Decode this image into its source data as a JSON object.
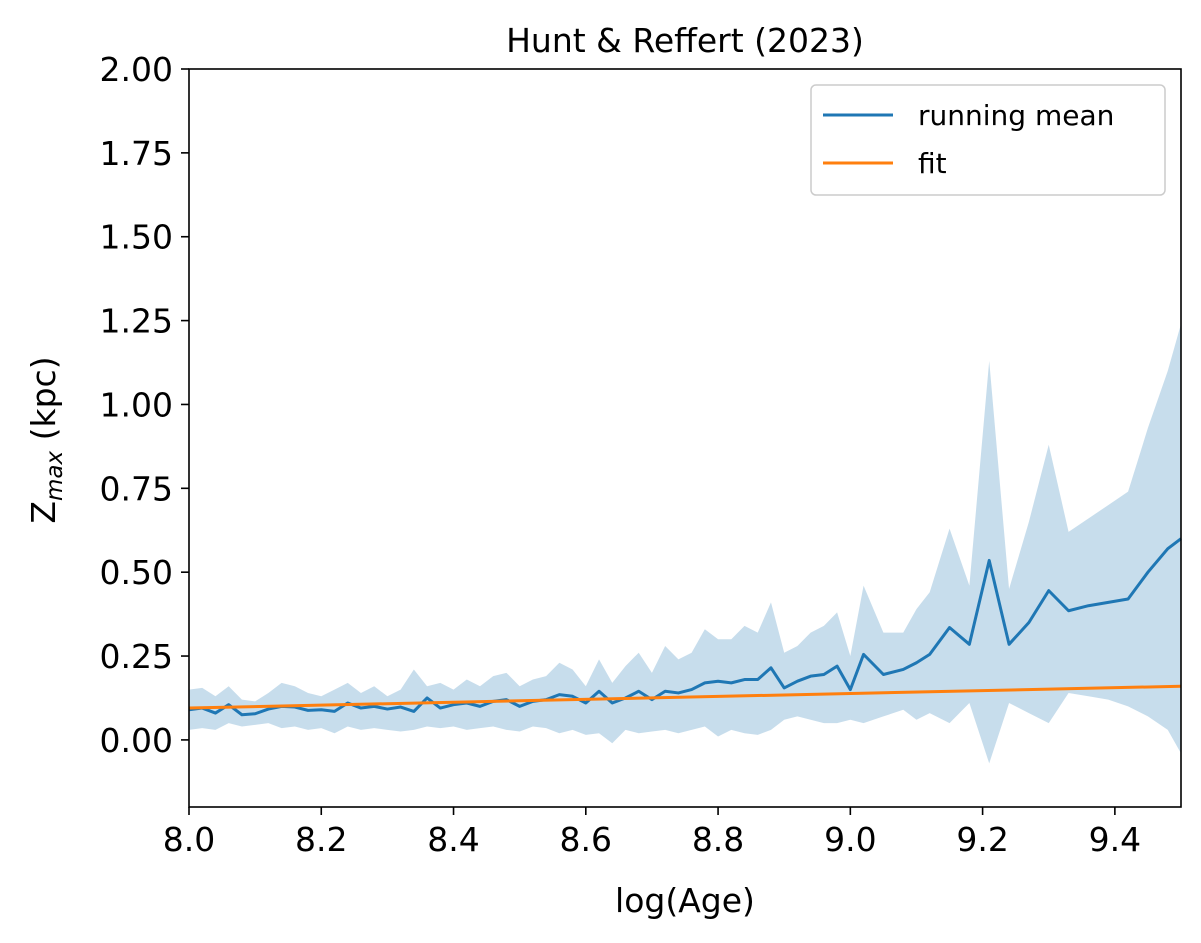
{
  "chart_data": {
    "type": "line",
    "title": "Hunt & Reffert (2023)",
    "xlabel": "log(Age)",
    "ylabel_main": "Z",
    "ylabel_sub": "max",
    "ylabel_unit": " (kpc)",
    "xlim": [
      8.0,
      9.5
    ],
    "ylim": [
      -0.2,
      2.0
    ],
    "xticks": [
      8.0,
      8.2,
      8.4,
      8.6,
      8.8,
      9.0,
      9.2,
      9.4
    ],
    "xtick_labels": [
      "8.0",
      "8.2",
      "8.4",
      "8.6",
      "8.8",
      "9.0",
      "9.2",
      "9.4"
    ],
    "yticks": [
      0.0,
      0.25,
      0.5,
      0.75,
      1.0,
      1.25,
      1.5,
      1.75,
      2.0
    ],
    "ytick_labels": [
      "0.00",
      "0.25",
      "0.50",
      "0.75",
      "1.00",
      "1.25",
      "1.50",
      "1.75",
      "2.00"
    ],
    "grid": false,
    "legend_position": "top-right",
    "series": [
      {
        "name": "running mean",
        "color": "#1f77b4",
        "x": [
          8.0,
          8.02,
          8.04,
          8.06,
          8.08,
          8.1,
          8.12,
          8.14,
          8.16,
          8.18,
          8.2,
          8.22,
          8.24,
          8.26,
          8.28,
          8.3,
          8.32,
          8.34,
          8.36,
          8.38,
          8.4,
          8.42,
          8.44,
          8.46,
          8.48,
          8.5,
          8.52,
          8.54,
          8.56,
          8.58,
          8.6,
          8.62,
          8.64,
          8.66,
          8.68,
          8.7,
          8.72,
          8.74,
          8.76,
          8.78,
          8.8,
          8.82,
          8.84,
          8.86,
          8.88,
          8.9,
          8.92,
          8.94,
          8.96,
          8.98,
          9.0,
          9.02,
          9.05,
          9.08,
          9.1,
          9.12,
          9.15,
          9.18,
          9.21,
          9.24,
          9.27,
          9.3,
          9.33,
          9.36,
          9.39,
          9.42,
          9.45,
          9.48,
          9.5
        ],
        "y": [
          0.09,
          0.095,
          0.08,
          0.105,
          0.075,
          0.078,
          0.092,
          0.1,
          0.098,
          0.088,
          0.09,
          0.085,
          0.11,
          0.095,
          0.1,
          0.092,
          0.098,
          0.085,
          0.125,
          0.095,
          0.105,
          0.11,
          0.1,
          0.115,
          0.12,
          0.1,
          0.115,
          0.12,
          0.135,
          0.13,
          0.11,
          0.145,
          0.11,
          0.125,
          0.145,
          0.12,
          0.145,
          0.14,
          0.15,
          0.17,
          0.175,
          0.17,
          0.18,
          0.18,
          0.215,
          0.155,
          0.175,
          0.19,
          0.195,
          0.22,
          0.15,
          0.255,
          0.195,
          0.21,
          0.23,
          0.255,
          0.335,
          0.285,
          0.535,
          0.285,
          0.35,
          0.445,
          0.385,
          0.4,
          0.41,
          0.42,
          0.5,
          0.57,
          0.6
        ],
        "y_lower": [
          0.03,
          0.035,
          0.03,
          0.05,
          0.04,
          0.045,
          0.05,
          0.035,
          0.04,
          0.03,
          0.035,
          0.02,
          0.04,
          0.03,
          0.035,
          0.03,
          0.025,
          0.03,
          0.04,
          0.035,
          0.04,
          0.03,
          0.035,
          0.04,
          0.03,
          0.025,
          0.04,
          0.035,
          0.02,
          0.03,
          0.015,
          0.02,
          -0.01,
          0.03,
          0.02,
          0.025,
          0.03,
          0.02,
          0.03,
          0.04,
          0.01,
          0.03,
          0.02,
          0.015,
          0.03,
          0.06,
          0.07,
          0.06,
          0.05,
          0.05,
          0.06,
          0.05,
          0.07,
          0.09,
          0.06,
          0.08,
          0.05,
          0.11,
          -0.07,
          0.11,
          0.08,
          0.05,
          0.14,
          0.13,
          0.12,
          0.1,
          0.07,
          0.03,
          -0.04
        ],
        "y_upper": [
          0.15,
          0.155,
          0.13,
          0.16,
          0.12,
          0.115,
          0.14,
          0.17,
          0.16,
          0.14,
          0.13,
          0.15,
          0.17,
          0.14,
          0.16,
          0.13,
          0.15,
          0.21,
          0.16,
          0.17,
          0.15,
          0.18,
          0.16,
          0.19,
          0.2,
          0.16,
          0.18,
          0.19,
          0.23,
          0.21,
          0.16,
          0.24,
          0.17,
          0.22,
          0.26,
          0.2,
          0.28,
          0.24,
          0.26,
          0.33,
          0.3,
          0.3,
          0.34,
          0.32,
          0.41,
          0.26,
          0.28,
          0.32,
          0.34,
          0.38,
          0.25,
          0.46,
          0.32,
          0.32,
          0.39,
          0.44,
          0.63,
          0.46,
          1.13,
          0.45,
          0.65,
          0.88,
          0.62,
          0.66,
          0.7,
          0.74,
          0.93,
          1.1,
          1.24
        ]
      },
      {
        "name": "fit",
        "color": "#ff7f0e",
        "x": [
          8.0,
          9.5
        ],
        "y": [
          0.095,
          0.16
        ]
      }
    ],
    "band_color": "#1f77b4",
    "band_opacity": 0.25
  }
}
